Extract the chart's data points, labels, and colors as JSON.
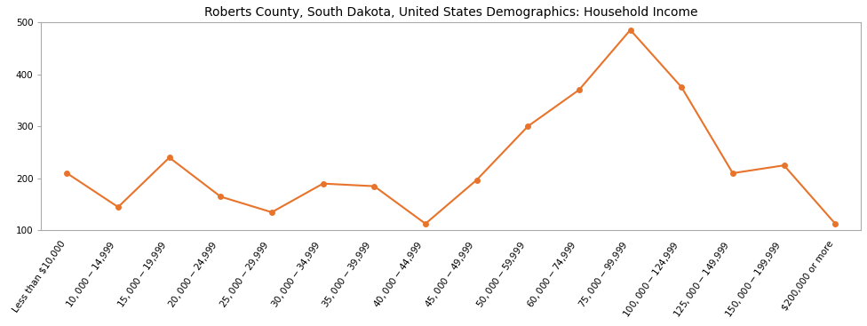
{
  "title": "Roberts County, South Dakota, United States Demographics: Household Income",
  "categories": [
    "Less than $10,000",
    "$10,000 - $14,999",
    "$15,000 - $19,999",
    "$20,000 - $24,999",
    "$25,000 - $29,999",
    "$30,000 - $34,999",
    "$35,000 - $39,999",
    "$40,000 - $44,999",
    "$45,000 - $49,999",
    "$50,000 - $59,999",
    "$60,000 - $74,999",
    "$75,000 - $99,999",
    "$100,000 - $124,999",
    "$125,000 - $149,999",
    "$150,000 - $199,999",
    "$200,000 or more"
  ],
  "values": [
    210,
    145,
    240,
    165,
    135,
    190,
    185,
    113,
    197,
    300,
    370,
    485,
    375,
    210,
    225,
    113
  ],
  "line_color": "#E8732A",
  "marker_color": "#E8732A",
  "marker_size": 5,
  "line_width": 1.5,
  "ylim": [
    100,
    500
  ],
  "yticks": [
    100,
    200,
    300,
    400,
    500
  ],
  "background_color": "#ffffff",
  "title_fontsize": 10,
  "tick_fontsize": 7.5,
  "label_rotation": 55
}
